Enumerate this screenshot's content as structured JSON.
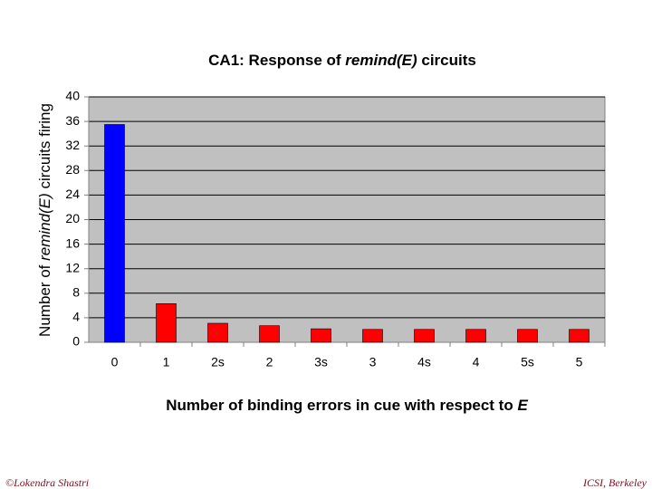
{
  "chart_data": {
    "type": "bar",
    "title": [
      "CA1: Response of ",
      "remind(E)",
      "  circuits"
    ],
    "ylabel": [
      "Number of ",
      "remind(E)",
      "  circuits firing"
    ],
    "xlabel": [
      "Number of binding errors in cue with respect to ",
      "E"
    ],
    "categories": [
      "0",
      "1",
      "2s",
      "2",
      "3s",
      "3",
      "4s",
      "4",
      "5s",
      "5"
    ],
    "values": [
      35.5,
      6.3,
      3.1,
      2.7,
      2.2,
      2.1,
      2.1,
      2.1,
      2.1,
      2.1
    ],
    "colors": [
      "#0000ff",
      "#ff0000",
      "#ff0000",
      "#ff0000",
      "#ff0000",
      "#ff0000",
      "#ff0000",
      "#ff0000",
      "#ff0000",
      "#ff0000"
    ],
    "ylim": [
      0,
      40
    ],
    "yticks": [
      0,
      4,
      8,
      12,
      16,
      20,
      24,
      28,
      32,
      36,
      40
    ],
    "grid": true
  },
  "footer": {
    "left": "©Lokendra Shastri",
    "right": "ICSI, Berkeley"
  }
}
